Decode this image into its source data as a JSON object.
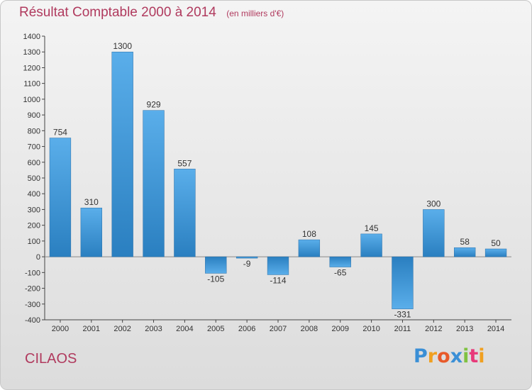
{
  "header": {
    "title": "Résultat Comptable 2000 à 2014",
    "subtitle": "(en milliers d'€)"
  },
  "footer": {
    "commune": "CILAOS"
  },
  "logo": {
    "text": "Proxiti",
    "letters": [
      {
        "ch": "P",
        "color": "#3a8fd6"
      },
      {
        "ch": "r",
        "color": "#f0a020"
      },
      {
        "ch": "o",
        "color": "#e85a2a"
      },
      {
        "ch": "x",
        "color": "#3a8fd6"
      },
      {
        "ch": "i",
        "color": "#7fc241"
      },
      {
        "ch": "t",
        "color": "#e83a7a"
      },
      {
        "ch": "i",
        "color": "#f0a020"
      }
    ]
  },
  "colors": {
    "bar_light": "#5aaeea",
    "bar_dark": "#2a7fc0",
    "title": "#b03a5e"
  },
  "chart_data": {
    "type": "bar",
    "categories": [
      "2000",
      "2001",
      "2002",
      "2003",
      "2004",
      "2005",
      "2006",
      "2007",
      "2008",
      "2009",
      "2010",
      "2011",
      "2012",
      "2013",
      "2014"
    ],
    "values": [
      754,
      310,
      1300,
      929,
      557,
      -105,
      -9,
      -114,
      108,
      -65,
      145,
      -331,
      300,
      58,
      50
    ],
    "value_labels": [
      "754",
      "310",
      "1300",
      "929",
      "557",
      "-105",
      "-9",
      "-114",
      "108",
      "-65",
      "145",
      "-331",
      "300",
      "58",
      "50"
    ],
    "y_ticks": [
      "1400",
      "1300",
      "1200",
      "1100",
      "1000",
      "900",
      "800",
      "700",
      "600",
      "500",
      "400",
      "300",
      "200",
      "100",
      "0",
      "-100",
      "-200",
      "-300",
      "-400"
    ],
    "ylim": [
      -400,
      1400
    ],
    "grid": false,
    "xlabel": "",
    "ylabel": ""
  }
}
